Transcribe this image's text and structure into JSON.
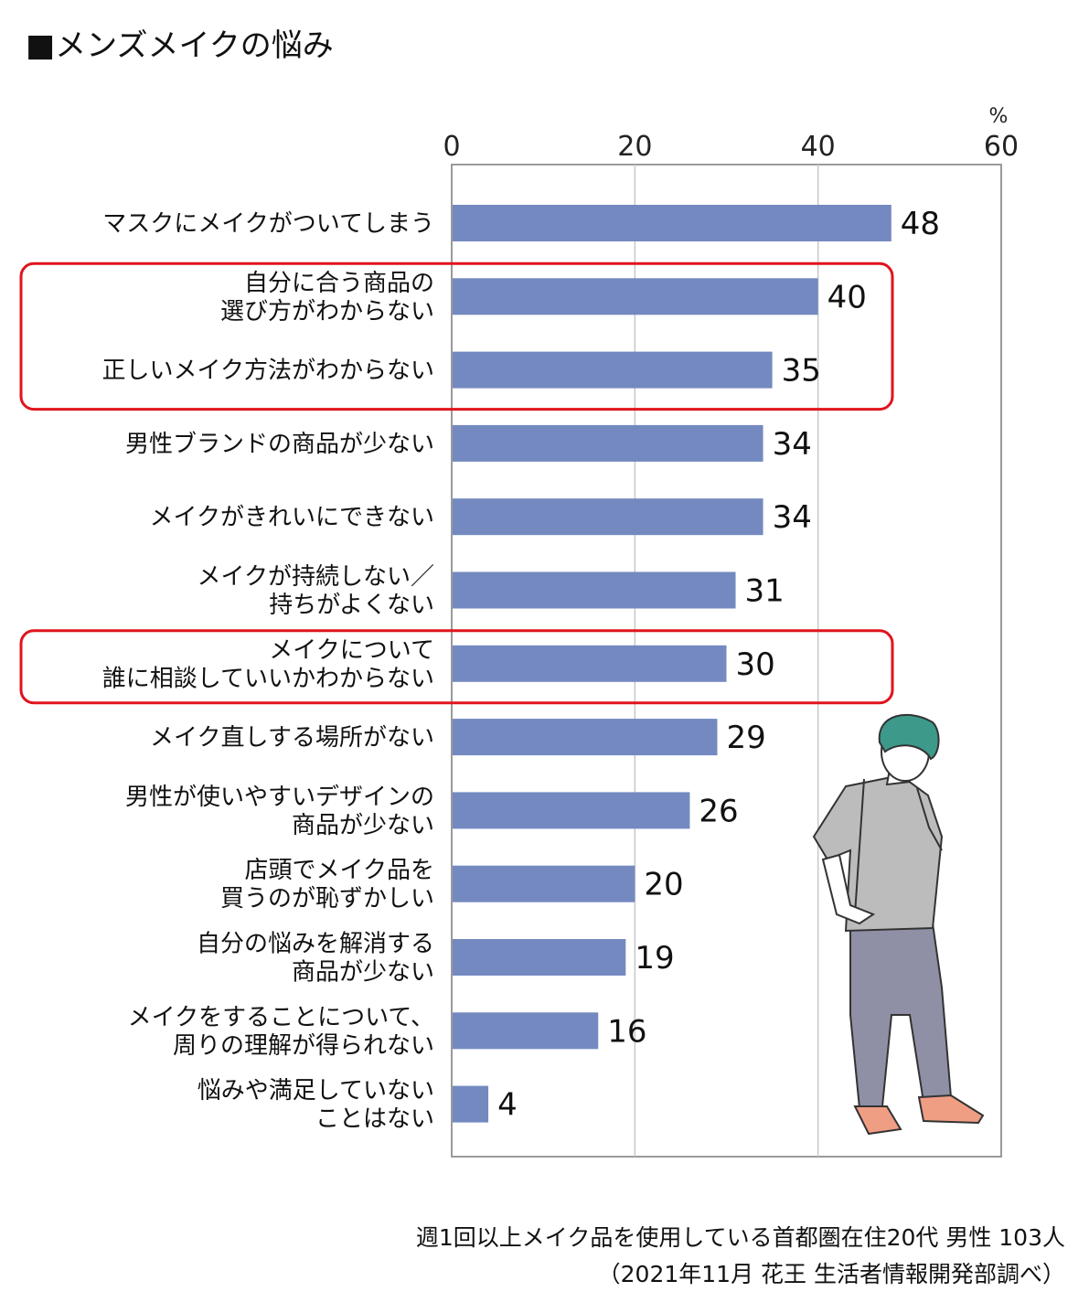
{
  "title": "■メンズメイクの悩み",
  "chart_data": {
    "type": "bar",
    "orientation": "horizontal",
    "title": "■メンズメイクの悩み",
    "unit": "%",
    "xlim": [
      0,
      60
    ],
    "ticks": [
      "0",
      "20",
      "40",
      "60"
    ],
    "grid": true,
    "bar_color": "#7389c0",
    "highlight_color": "#e0141e",
    "categories": [
      [
        "マスクにメイクがついてしまう"
      ],
      [
        "自分に合う商品の",
        "選び方がわからない"
      ],
      [
        "正しいメイク方法がわからない"
      ],
      [
        "男性ブランドの商品が少ない"
      ],
      [
        "メイクがきれいにできない"
      ],
      [
        "メイクが持続しない／",
        "持ちがよくない"
      ],
      [
        "メイクについて",
        "誰に相談していいかわからない"
      ],
      [
        "メイク直しする場所がない"
      ],
      [
        "男性が使いやすいデザインの",
        "商品が少ない"
      ],
      [
        "店頭でメイク品を",
        "買うのが恥ずかしい"
      ],
      [
        "自分の悩みを解消する",
        "商品が少ない"
      ],
      [
        "メイクをすることについて、",
        "周りの理解が得られない"
      ],
      [
        "悩みや満足していない",
        "ことはない"
      ]
    ],
    "values": [
      48,
      40,
      35,
      34,
      34,
      31,
      30,
      29,
      26,
      20,
      19,
      16,
      4
    ],
    "highlighted_groups": [
      [
        1,
        2
      ],
      [
        6
      ]
    ]
  },
  "footnote": {
    "line1": "週1回以上メイク品を使用している首都圏在住20代 男性 103人",
    "line2": "（2021年11月 花王 生活者情報開発部調べ）"
  }
}
